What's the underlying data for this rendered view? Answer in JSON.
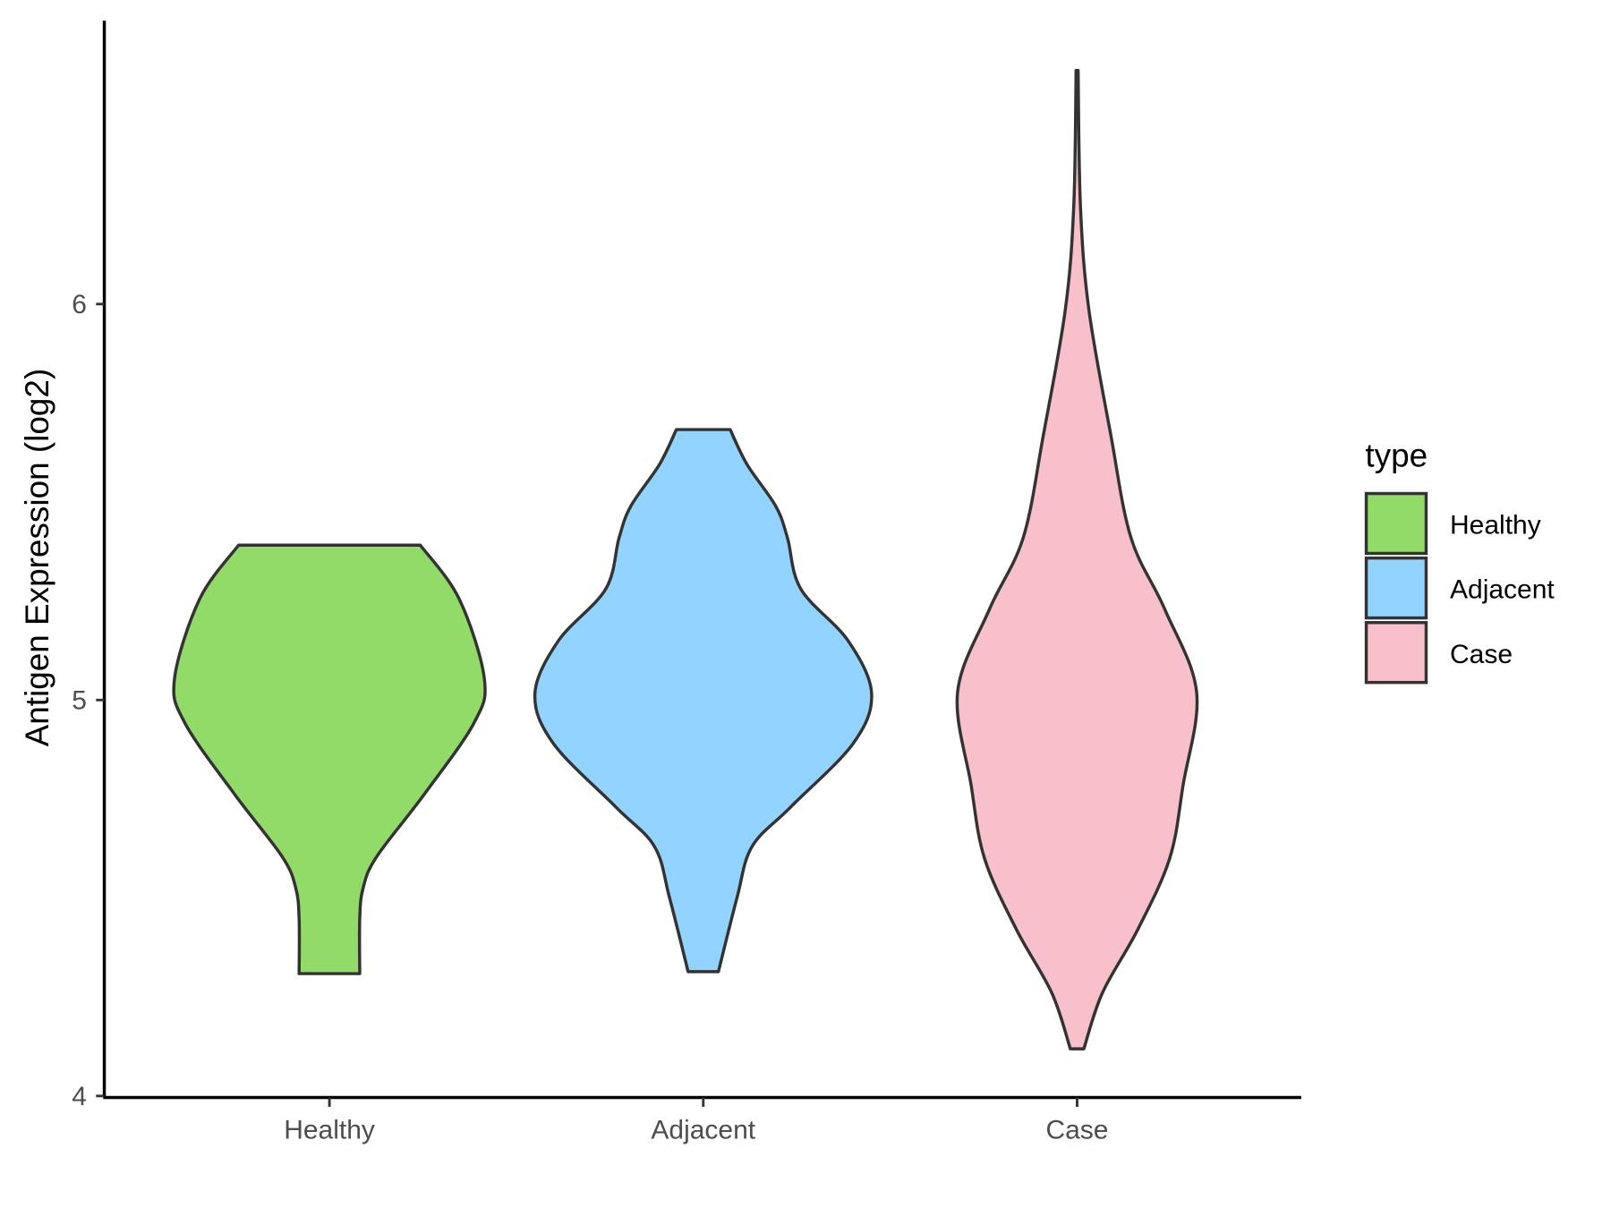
{
  "chart_data": {
    "type": "violin",
    "title": "",
    "xlabel": "",
    "ylabel": "Antigen Expression (log2)",
    "ylim": [
      4,
      6.75
    ],
    "yticks": [
      4,
      5,
      6
    ],
    "categories": [
      "Healthy",
      "Adjacent",
      "Case"
    ],
    "legend": {
      "title": "type",
      "position": "right",
      "entries": [
        "Healthy",
        "Adjacent",
        "Case"
      ]
    },
    "grid": false,
    "colors": {
      "Healthy": "#93DB69",
      "Adjacent": "#92D3FF",
      "Case": "#F8C0CB",
      "outline": "#333333"
    },
    "series": [
      {
        "name": "Healthy",
        "profile": [
          [
            5.391,
            0.54
          ],
          [
            5.256,
            0.77
          ],
          [
            5.055,
            0.92
          ],
          [
            4.943,
            0.86
          ],
          [
            4.76,
            0.56
          ],
          [
            4.604,
            0.28
          ],
          [
            4.525,
            0.2
          ],
          [
            4.447,
            0.18
          ],
          [
            4.309,
            0.18
          ]
        ]
      },
      {
        "name": "Adjacent",
        "profile": [
          [
            5.683,
            0.16
          ],
          [
            5.595,
            0.26
          ],
          [
            5.49,
            0.43
          ],
          [
            5.41,
            0.5
          ],
          [
            5.28,
            0.58
          ],
          [
            5.15,
            0.86
          ],
          [
            5.016,
            1.0
          ],
          [
            4.89,
            0.89
          ],
          [
            4.73,
            0.52
          ],
          [
            4.63,
            0.29
          ],
          [
            4.5,
            0.2
          ],
          [
            4.314,
            0.09
          ]
        ]
      },
      {
        "name": "Case",
        "profile": [
          [
            6.59,
            0.006
          ],
          [
            6.246,
            0.02
          ],
          [
            5.986,
            0.07
          ],
          [
            5.67,
            0.2
          ],
          [
            5.41,
            0.32
          ],
          [
            5.23,
            0.52
          ],
          [
            5.02,
            0.71
          ],
          [
            4.786,
            0.63
          ],
          [
            4.6,
            0.55
          ],
          [
            4.42,
            0.36
          ],
          [
            4.26,
            0.15
          ],
          [
            4.119,
            0.04
          ]
        ]
      }
    ]
  }
}
